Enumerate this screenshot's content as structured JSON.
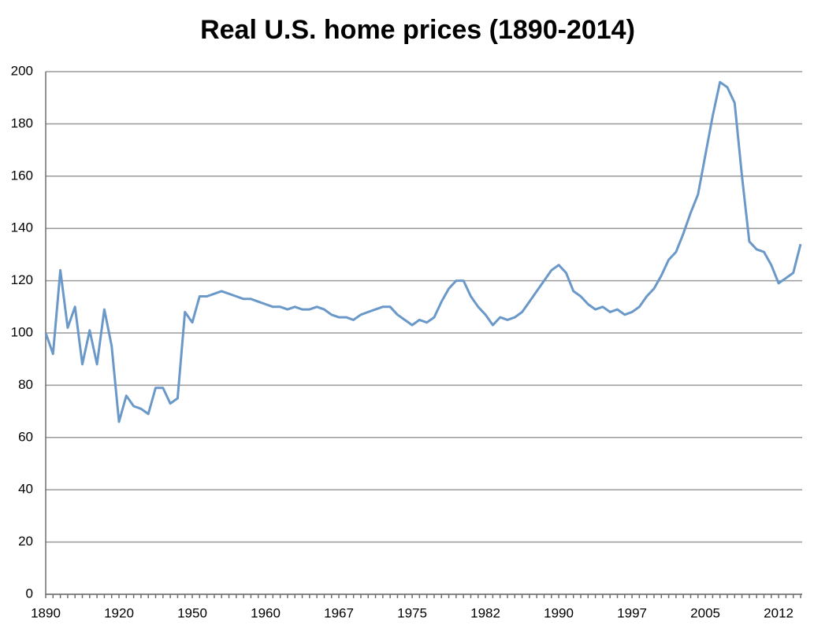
{
  "chart_data": {
    "type": "line",
    "title": "Real U.S. home prices (1890-2014)",
    "categories": [
      "1890",
      null,
      null,
      null,
      null,
      null,
      null,
      null,
      null,
      null,
      "1920",
      null,
      null,
      null,
      null,
      null,
      null,
      null,
      null,
      null,
      "1950",
      null,
      null,
      null,
      null,
      null,
      null,
      null,
      null,
      null,
      "1960",
      null,
      null,
      null,
      null,
      null,
      null,
      null,
      null,
      null,
      "1967",
      null,
      null,
      null,
      null,
      null,
      null,
      null,
      null,
      null,
      "1975",
      null,
      null,
      null,
      null,
      null,
      null,
      null,
      null,
      null,
      "1982",
      null,
      null,
      null,
      null,
      null,
      null,
      null,
      null,
      null,
      "1990",
      null,
      null,
      null,
      null,
      null,
      null,
      null,
      null,
      null,
      "1997",
      null,
      null,
      null,
      null,
      null,
      null,
      null,
      null,
      null,
      "2005",
      null,
      null,
      null,
      null,
      null,
      null,
      null,
      null,
      null,
      "2012",
      null,
      null,
      null
    ],
    "values": [
      100,
      92,
      124,
      102,
      110,
      88,
      101,
      88,
      109,
      95,
      66,
      76,
      72,
      71,
      69,
      79,
      79,
      73,
      75,
      108,
      104,
      114,
      114,
      115,
      116,
      115,
      114,
      113,
      113,
      112,
      111,
      110,
      110,
      109,
      110,
      109,
      109,
      110,
      109,
      107,
      106,
      106,
      105,
      107,
      108,
      109,
      110,
      110,
      107,
      105,
      103,
      105,
      104,
      106,
      112,
      117,
      120,
      120,
      114,
      110,
      107,
      103,
      106,
      105,
      106,
      108,
      112,
      116,
      120,
      124,
      126,
      123,
      116,
      114,
      111,
      109,
      110,
      108,
      109,
      107,
      108,
      110,
      114,
      117,
      122,
      128,
      131,
      138,
      146,
      153,
      168,
      183,
      196,
      194,
      188,
      160,
      135,
      132,
      131,
      126,
      119,
      121,
      123,
      134
    ],
    "color": "#6a98c8",
    "ylim": [
      0,
      200
    ],
    "yticks": [
      0,
      20,
      40,
      60,
      80,
      100,
      120,
      140,
      160,
      180,
      200
    ],
    "grid": true
  }
}
